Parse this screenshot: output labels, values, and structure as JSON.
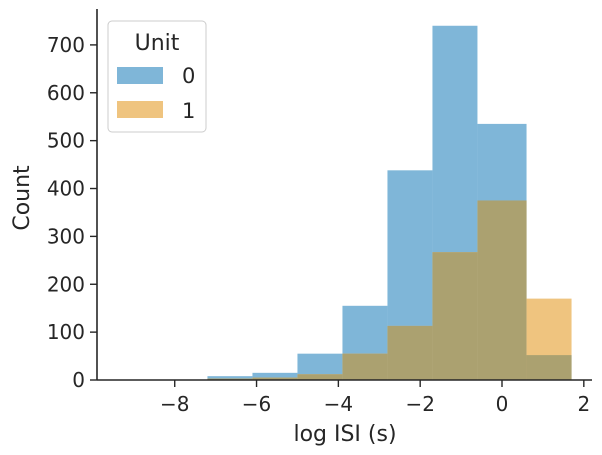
{
  "chart_data": {
    "type": "bar",
    "xlabel": "log ISI (s)",
    "ylabel": "Count",
    "xlim": [
      -9.9,
      2.2
    ],
    "ylim": [
      0,
      775
    ],
    "xticks": [
      -8,
      -6,
      -4,
      -2,
      0,
      2
    ],
    "xtick_labels": [
      "−8",
      "−6",
      "−4",
      "−2",
      "0",
      "2"
    ],
    "yticks": [
      0,
      100,
      200,
      300,
      400,
      500,
      600,
      700
    ],
    "ytick_labels": [
      "0",
      "100",
      "200",
      "300",
      "400",
      "500",
      "600",
      "700"
    ],
    "bin_edges": [
      -9.2,
      -8.1,
      -7.2,
      -6.1,
      -5.0,
      -3.9,
      -2.8,
      -1.7,
      -0.6,
      0.6,
      1.7
    ],
    "legend": {
      "title": "Unit",
      "placement": "upper-left"
    },
    "series": [
      {
        "name": "0",
        "color": "#7fb6d8",
        "values": [
          0,
          0,
          8,
          15,
          55,
          155,
          438,
          740,
          535,
          52
        ]
      },
      {
        "name": "1",
        "color": "#efc47f",
        "values": [
          0,
          0,
          3,
          5,
          12,
          55,
          113,
          267,
          375,
          170
        ]
      }
    ],
    "overlap_color": "#aba170",
    "grid": false
  }
}
